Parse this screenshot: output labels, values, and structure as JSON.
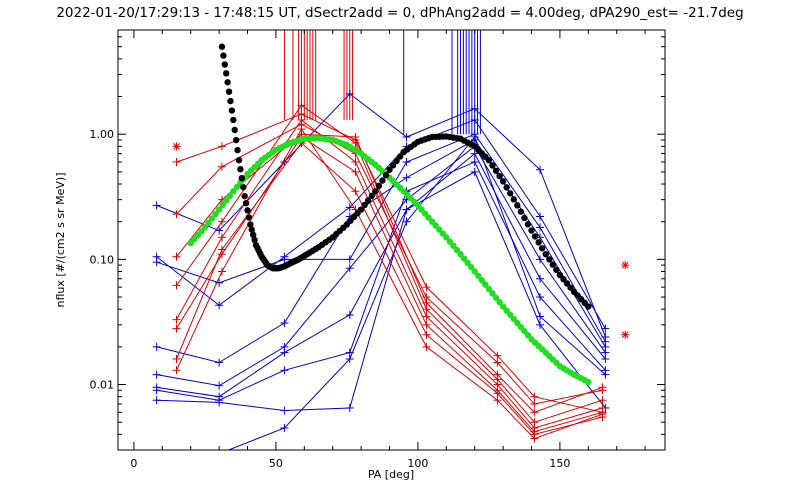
{
  "chart_data": {
    "type": "line",
    "title": "2022-01-20/17:29:13 - 17:48:15 UT, dSectr2add = 0, dPhAng2add = 4.00deg, dPA290_est= -21.7deg",
    "xlabel": "PA [deg]",
    "ylabel": "nflux [#/(cm2 s sr MeV)]",
    "xlim": [
      -5.6,
      187
    ],
    "ylim": [
      0.003,
      6.8
    ],
    "yscale": "log",
    "x_ticks": [
      0,
      50,
      100,
      150
    ],
    "x_tick_labels": [
      "0",
      "50",
      "100",
      "150"
    ],
    "y_ticks": [
      0.01,
      0.1,
      1.0
    ],
    "y_tick_labels": [
      "0.01",
      "0.10",
      "1.00"
    ],
    "colors": {
      "red": "#e00000",
      "blue": "#0000d0",
      "black": "#000000",
      "green": "#22dd22"
    },
    "red_series": [
      {
        "name": "red-1",
        "x": [
          15,
          31,
          59,
          78,
          103,
          128,
          141,
          165
        ],
        "y": [
          0.6,
          0.8,
          1.45,
          0.9,
          0.06,
          0.017,
          0.008,
          0.006
        ]
      },
      {
        "name": "red-2",
        "x": [
          15,
          31,
          59,
          78,
          103,
          128,
          141,
          165
        ],
        "y": [
          0.23,
          0.55,
          1.2,
          0.7,
          0.05,
          0.015,
          0.007,
          0.009
        ]
      },
      {
        "name": "red-3",
        "x": [
          15,
          31,
          59,
          78,
          103,
          128,
          141,
          165
        ],
        "y": [
          0.105,
          0.3,
          1.0,
          0.95,
          0.045,
          0.012,
          0.006,
          0.0095
        ]
      },
      {
        "name": "red-4",
        "x": [
          15,
          31,
          59,
          78,
          103,
          128,
          141,
          165
        ],
        "y": [
          0.062,
          0.2,
          1.7,
          0.85,
          0.04,
          0.011,
          0.005,
          0.0075
        ]
      },
      {
        "name": "red-5",
        "x": [
          15,
          31,
          59,
          78,
          103,
          128,
          141,
          165
        ],
        "y": [
          0.033,
          0.15,
          1.3,
          0.6,
          0.035,
          0.01,
          0.0045,
          0.0065
        ]
      },
      {
        "name": "red-6",
        "x": [
          15,
          31,
          59,
          78,
          103,
          128,
          141,
          165
        ],
        "y": [
          0.028,
          0.11,
          0.95,
          0.5,
          0.03,
          0.009,
          0.0042,
          0.006
        ]
      },
      {
        "name": "red-7",
        "x": [
          15,
          31,
          59,
          78,
          103,
          128,
          141,
          165
        ],
        "y": [
          0.016,
          0.12,
          0.85,
          0.35,
          0.025,
          0.0085,
          0.004,
          0.0055
        ]
      },
      {
        "name": "red-8",
        "x": [
          15,
          31,
          59,
          78,
          103,
          128,
          141,
          165
        ],
        "y": [
          0.013,
          0.08,
          1.1,
          0.25,
          0.02,
          0.0075,
          0.0037,
          0.0058
        ]
      }
    ],
    "red_asterisks": [
      {
        "x": 15,
        "y": 0.8
      },
      {
        "x": 173,
        "y": 0.09
      },
      {
        "x": 173,
        "y": 0.025
      }
    ],
    "blue_series": [
      {
        "name": "blue-1",
        "x": [
          8,
          30,
          53,
          76,
          96,
          120,
          143,
          166
        ],
        "y": [
          0.27,
          0.17,
          0.6,
          2.1,
          0.95,
          1.6,
          0.52,
          0.024
        ]
      },
      {
        "name": "blue-2",
        "x": [
          8,
          30,
          53,
          76,
          96,
          120,
          143,
          166
        ],
        "y": [
          0.105,
          0.043,
          0.105,
          0.26,
          0.8,
          1.3,
          0.22,
          0.028
        ]
      },
      {
        "name": "blue-3",
        "x": [
          8,
          30,
          53,
          76,
          96,
          120,
          143,
          166
        ],
        "y": [
          0.095,
          0.065,
          0.1,
          0.1,
          0.6,
          1.0,
          0.18,
          0.022
        ]
      },
      {
        "name": "blue-4",
        "x": [
          8,
          30,
          53,
          76,
          96,
          120,
          143,
          166
        ],
        "y": [
          0.02,
          0.015,
          0.031,
          0.22,
          0.45,
          0.9,
          0.15,
          0.02
        ]
      },
      {
        "name": "blue-5",
        "x": [
          8,
          30,
          53,
          76,
          96,
          120,
          143,
          166
        ],
        "y": [
          0.012,
          0.0098,
          0.02,
          0.085,
          0.3,
          0.8,
          0.1,
          0.018
        ]
      },
      {
        "name": "blue-6",
        "x": [
          8,
          30,
          53,
          76,
          96,
          120,
          143,
          166
        ],
        "y": [
          0.0095,
          0.008,
          0.018,
          0.036,
          0.25,
          0.7,
          0.07,
          0.016
        ]
      },
      {
        "name": "blue-7",
        "x": [
          8,
          30,
          53,
          76,
          96,
          120,
          143,
          166
        ],
        "y": [
          0.009,
          0.0075,
          0.013,
          0.018,
          0.35,
          0.6,
          0.05,
          0.013
        ]
      },
      {
        "name": "blue-8",
        "x": [
          8,
          30,
          53,
          76,
          96,
          120,
          143,
          166
        ],
        "y": [
          0.0075,
          0.0072,
          0.0062,
          0.0065,
          0.25,
          0.5,
          0.03,
          0.0065
        ]
      },
      {
        "name": "blue-9",
        "x": [
          30,
          53,
          76,
          96,
          120,
          143,
          166
        ],
        "y": [
          0.0028,
          0.0045,
          0.016,
          0.2,
          0.95,
          0.035,
          0.012
        ]
      }
    ],
    "red_verticals_x": [
      53,
      56,
      58,
      59,
      60,
      61,
      62,
      63,
      64,
      74,
      75,
      76,
      77
    ],
    "blue_verticals_x": [
      95,
      112,
      114,
      115,
      116,
      117,
      118,
      119,
      120,
      121,
      122
    ],
    "black_fit": {
      "name": "black-fit",
      "x": [
        31,
        33,
        35,
        37,
        39,
        41,
        43,
        45,
        47,
        49,
        51,
        53,
        55,
        58,
        61,
        65,
        70,
        75,
        80,
        85,
        90,
        95,
        100,
        105,
        110,
        115,
        120,
        125,
        130,
        135,
        140,
        145,
        150,
        155,
        160
      ],
      "y": [
        5.0,
        2.6,
        1.3,
        0.62,
        0.32,
        0.19,
        0.13,
        0.105,
        0.09,
        0.085,
        0.085,
        0.088,
        0.093,
        0.1,
        0.11,
        0.125,
        0.15,
        0.19,
        0.25,
        0.35,
        0.52,
        0.72,
        0.87,
        0.95,
        0.96,
        0.92,
        0.8,
        0.62,
        0.42,
        0.27,
        0.17,
        0.11,
        0.075,
        0.055,
        0.042
      ]
    },
    "green_fit": {
      "name": "green-fit",
      "x": [
        20,
        25,
        30,
        35,
        40,
        45,
        50,
        55,
        60,
        65,
        70,
        75,
        80,
        85,
        90,
        95,
        100,
        105,
        110,
        115,
        120,
        125,
        130,
        135,
        140,
        145,
        150,
        155,
        160
      ],
      "y": [
        0.135,
        0.18,
        0.25,
        0.35,
        0.48,
        0.62,
        0.75,
        0.85,
        0.92,
        0.93,
        0.9,
        0.82,
        0.7,
        0.57,
        0.45,
        0.35,
        0.27,
        0.2,
        0.15,
        0.11,
        0.08,
        0.058,
        0.042,
        0.031,
        0.023,
        0.018,
        0.014,
        0.012,
        0.0105
      ]
    }
  }
}
